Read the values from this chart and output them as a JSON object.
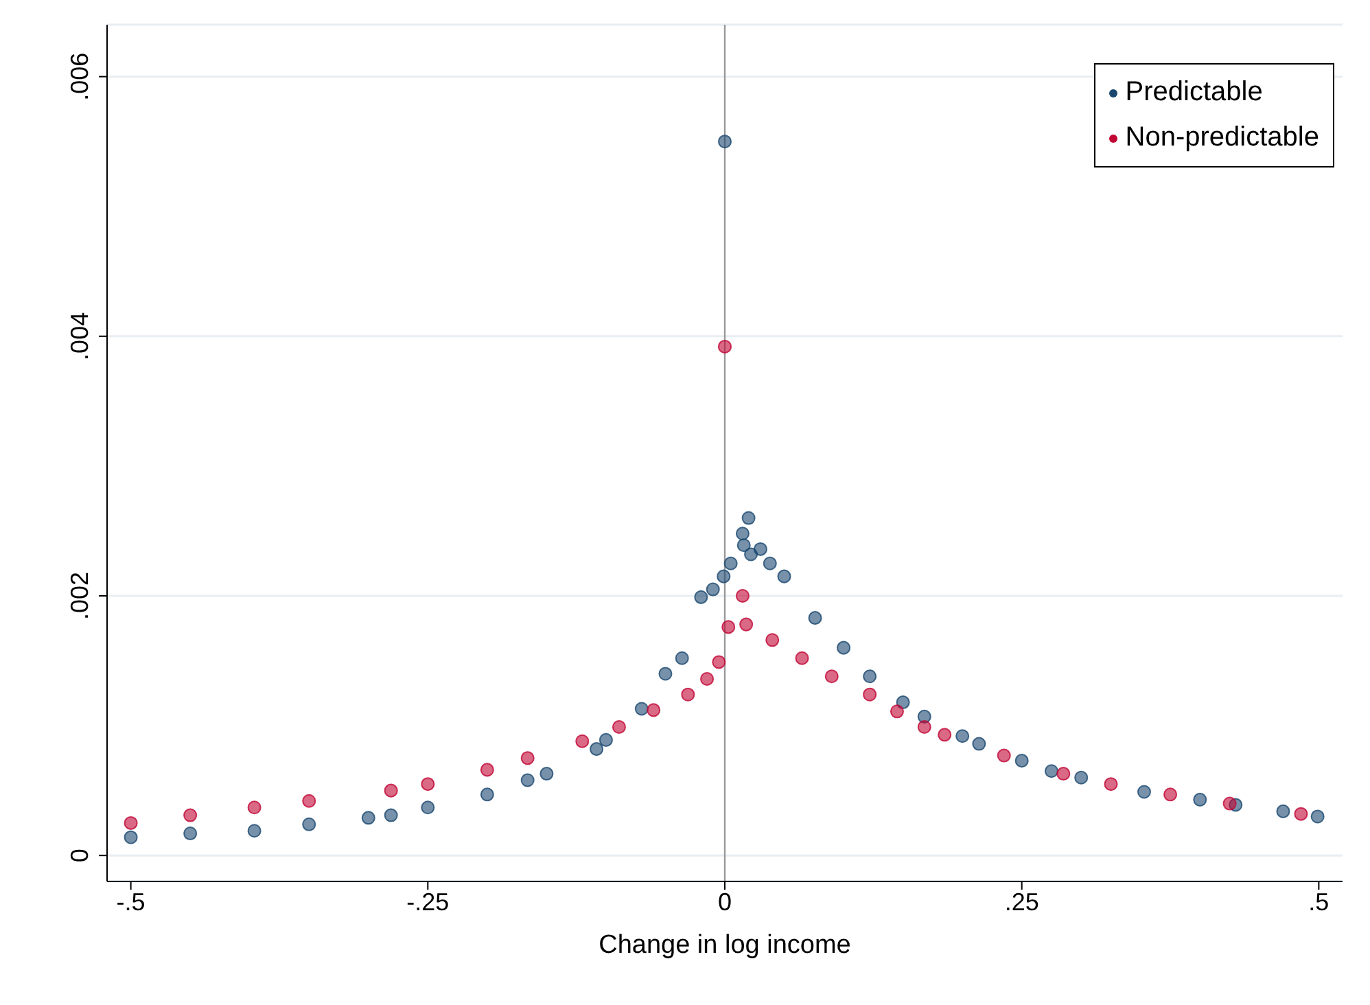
{
  "chart_data": {
    "type": "scatter",
    "xlabel": "Change in log income",
    "xlim": [
      -0.52,
      0.52
    ],
    "xticks": [
      {
        "value": -0.5,
        "label": "-.5"
      },
      {
        "value": -0.25,
        "label": "-.25"
      },
      0,
      {
        "value": 0.25,
        "label": ".25"
      },
      {
        "value": 0.5,
        "label": ".5"
      }
    ],
    "ylim": [
      -0.0002,
      0.0064
    ],
    "yticks": [
      0,
      {
        "value": 0.002,
        "label": ".002"
      },
      {
        "value": 0.004,
        "label": ".004"
      },
      {
        "value": 0.006,
        "label": ".006"
      }
    ],
    "grid": "y",
    "legend": "top right",
    "marker": "circle",
    "ref_lines": [
      {
        "axis": "x",
        "value": 0,
        "color": "#999999"
      }
    ],
    "series": [
      {
        "name": "Predictable",
        "color": "#1a476f",
        "x": [
          -0.5,
          -0.45,
          -0.396,
          -0.35,
          -0.3,
          -0.281,
          -0.25,
          -0.2,
          -0.166,
          -0.15,
          -0.108,
          -0.1,
          -0.07,
          -0.05,
          -0.036,
          -0.02,
          -0.01,
          -0.001,
          0,
          0.005,
          0.015,
          0.016,
          0.02,
          0.022,
          0.03,
          0.038,
          0.05,
          0.076,
          0.1,
          0.122,
          0.15,
          0.168,
          0.2,
          0.214,
          0.25,
          0.275,
          0.3,
          0.353,
          0.4,
          0.43,
          0.47,
          0.499
        ],
        "values": [
          0.00014,
          0.00017,
          0.00019,
          0.00024,
          0.00029,
          0.00031,
          0.00037,
          0.00047,
          0.00058,
          0.00063,
          0.00082,
          0.00089,
          0.00113,
          0.0014,
          0.00152,
          0.00199,
          0.00205,
          0.00215,
          0.0055,
          0.00225,
          0.00248,
          0.00239,
          0.0026,
          0.00232,
          0.00236,
          0.00225,
          0.00215,
          0.00183,
          0.0016,
          0.00138,
          0.00118,
          0.00107,
          0.00092,
          0.00086,
          0.00073,
          0.00065,
          0.0006,
          0.00049,
          0.00043,
          0.00039,
          0.00034,
          0.0003
        ]
      },
      {
        "name": "Non-predictable",
        "color": "#c10534",
        "x": [
          -0.5,
          -0.45,
          -0.396,
          -0.35,
          -0.281,
          -0.25,
          -0.2,
          -0.166,
          -0.12,
          -0.089,
          -0.06,
          -0.031,
          -0.015,
          -0.005,
          0,
          0.003,
          0.015,
          0.018,
          0.04,
          0.065,
          0.09,
          0.122,
          0.145,
          0.168,
          0.185,
          0.235,
          0.285,
          0.325,
          0.375,
          0.425,
          0.485
        ],
        "values": [
          0.00025,
          0.00031,
          0.00037,
          0.00042,
          0.0005,
          0.00055,
          0.00066,
          0.00075,
          0.00088,
          0.00099,
          0.00112,
          0.00124,
          0.00136,
          0.00149,
          0.00392,
          0.00176,
          0.002,
          0.00178,
          0.00166,
          0.00152,
          0.00138,
          0.00124,
          0.00111,
          0.00099,
          0.00093,
          0.00077,
          0.00063,
          0.00055,
          0.00047,
          0.0004,
          0.00032
        ]
      }
    ]
  }
}
